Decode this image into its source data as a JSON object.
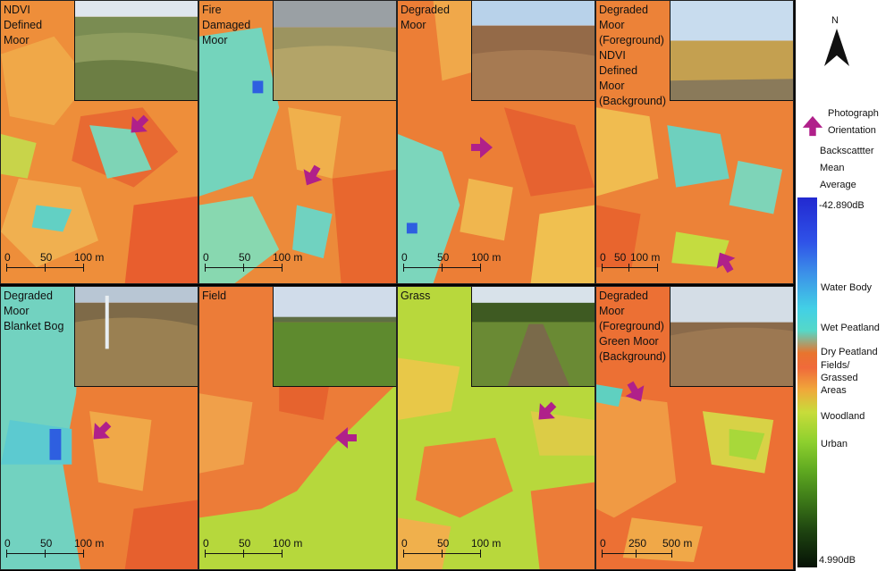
{
  "panels": [
    {
      "title": "NDVI\nDefined\nMoor",
      "scale": [
        "0",
        "50",
        "100 m"
      ]
    },
    {
      "title": "Fire\nDamaged\nMoor",
      "scale": [
        "0",
        "50",
        "100 m"
      ]
    },
    {
      "title": "Degraded\nMoor",
      "scale": [
        "0",
        "50",
        "100 m"
      ]
    },
    {
      "title": "Degraded\nMoor\n(Foreground)\nNDVI\nDefined\nMoor\n(Background)",
      "scale": [
        "0",
        "50",
        "100 m"
      ]
    },
    {
      "title": "Degraded\nMoor\nBlanket Bog",
      "scale": [
        "0",
        "50",
        "100 m"
      ]
    },
    {
      "title": "Field",
      "scale": [
        "0",
        "50",
        "100 m"
      ]
    },
    {
      "title": "Grass",
      "scale": [
        "0",
        "50",
        "100 m"
      ]
    },
    {
      "title": "Degraded\nMoor\n(Foreground)\nGreen Moor\n(Background)",
      "scale": [
        "0",
        "250",
        "500 m"
      ]
    }
  ],
  "legend": {
    "north_label": "N",
    "photo_orientation": "Photograph\nOrientation",
    "backscatter_title": "Backscattter\nMean\nAverage",
    "max_value": "-42.890dB",
    "min_value": "4.990dB",
    "classes": [
      "Water Body",
      "Wet Peatland",
      "Dry Peatland",
      "Fields/\nGrassed\nAreas",
      "Woodland",
      "Urban"
    ]
  },
  "colors": {
    "arrow": "#b0208a",
    "dry_peat": "#ea7a38",
    "wet_peat": "#5fd0c0",
    "water": "#2e5fe0",
    "grass": "#b8d83a"
  }
}
